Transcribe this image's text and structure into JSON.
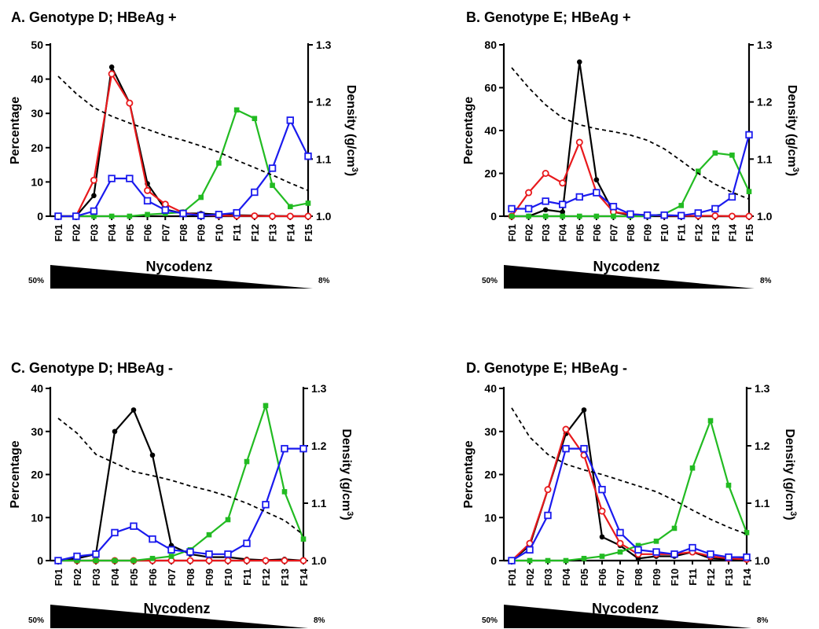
{
  "figure": {
    "x_axis_title": "Nycodenz",
    "y_left_title": "Percentage",
    "y_right_title": "Density (g/cm",
    "y_right_title_sup": "3",
    "y_right_title_end": ")",
    "gradient_start_label": "50%",
    "gradient_end_label": "8%",
    "colors": {
      "black_series": "#000000",
      "red_series": "#e8191c",
      "green_series": "#22bb22",
      "blue_series": "#1a1aee",
      "density_line": "#000000",
      "gradient_wedge": "#000000"
    }
  },
  "chart_data": [
    {
      "type": "line",
      "title": "A.   Genotype D; HBeAg +",
      "xlabel": "Nycodenz",
      "ylabel": "Percentage",
      "y2label": "Density (g/cm3)",
      "categories": [
        "F01",
        "F02",
        "F03",
        "F04",
        "F05",
        "F06",
        "F07",
        "F08",
        "F09",
        "F10",
        "F11",
        "F12",
        "F13",
        "F14",
        "F15"
      ],
      "ylim": [
        0,
        50
      ],
      "yticks": [
        0,
        10,
        20,
        30,
        40,
        50
      ],
      "y2lim": [
        1.0,
        1.3
      ],
      "y2ticks": [
        "1.0",
        "1.1",
        "1.2",
        "1.3"
      ],
      "grid": false,
      "legend": "none",
      "series": [
        {
          "color": "black",
          "marker": "filled-circle",
          "values": [
            0,
            0,
            6,
            43.5,
            33,
            9.5,
            2,
            0.8,
            0.8,
            0.5,
            0.3,
            0.2,
            0.1,
            0,
            0
          ]
        },
        {
          "color": "red",
          "marker": "open-circle",
          "values": [
            0,
            0,
            10.5,
            41.5,
            33,
            7.5,
            3.5,
            1,
            0.3,
            0.2,
            0.1,
            0.1,
            0,
            0,
            0
          ]
        },
        {
          "color": "green",
          "marker": "filled-square",
          "values": [
            0,
            0,
            0,
            0,
            0,
            0.5,
            0.8,
            1.2,
            5.5,
            15.5,
            31,
            28.5,
            9,
            2.8,
            3.8
          ]
        },
        {
          "color": "blue",
          "marker": "open-square",
          "values": [
            0,
            0,
            1.5,
            11,
            11,
            4.5,
            1.8,
            0.8,
            0.2,
            0.5,
            1,
            7,
            14,
            28,
            17.5
          ]
        },
        {
          "color": "black",
          "style": "dashed",
          "axis": "right",
          "values": [
            1.245,
            1.215,
            1.19,
            1.175,
            1.163,
            1.152,
            1.141,
            1.133,
            1.123,
            1.112,
            1.098,
            1.085,
            1.072,
            1.058,
            1.045
          ]
        }
      ],
      "gradient": {
        "start_label": "50%",
        "end_label": "8%"
      }
    },
    {
      "type": "line",
      "title": "B.   Genotype E; HBeAg +",
      "xlabel": "Nycodenz",
      "ylabel": "Percentage",
      "y2label": "Density (g/cm3)",
      "categories": [
        "F01",
        "F02",
        "F03",
        "F04",
        "F05",
        "F06",
        "F07",
        "F08",
        "F09",
        "F10",
        "F11",
        "F12",
        "F13",
        "F14",
        "F15"
      ],
      "ylim": [
        0,
        80
      ],
      "yticks": [
        0,
        20,
        40,
        60,
        80
      ],
      "y2lim": [
        1.0,
        1.3
      ],
      "y2ticks": [
        "1.0",
        "1.1",
        "1.2",
        "1.3"
      ],
      "grid": false,
      "legend": "none",
      "series": [
        {
          "color": "black",
          "marker": "filled-circle",
          "values": [
            0,
            0,
            3,
            2,
            72,
            17,
            2,
            0.5,
            0.5,
            0,
            0,
            0,
            0,
            0,
            0
          ]
        },
        {
          "color": "red",
          "marker": "open-circle",
          "values": [
            0,
            11,
            20,
            15.5,
            34.5,
            11,
            2,
            1,
            0.5,
            0.3,
            0.2,
            0.2,
            0.2,
            0,
            0
          ]
        },
        {
          "color": "green",
          "marker": "filled-square",
          "values": [
            0,
            0,
            0,
            0,
            0,
            0,
            0,
            0,
            0,
            1,
            5,
            21,
            29.5,
            28.5,
            11.5
          ]
        },
        {
          "color": "blue",
          "marker": "open-square",
          "values": [
            3.5,
            3.5,
            7,
            5.5,
            9,
            11,
            4.5,
            1,
            0.5,
            0.5,
            0.3,
            1.5,
            3.5,
            9,
            38
          ]
        },
        {
          "color": "black",
          "style": "dashed",
          "axis": "right",
          "values": [
            1.26,
            1.225,
            1.195,
            1.172,
            1.16,
            1.153,
            1.148,
            1.142,
            1.133,
            1.118,
            1.097,
            1.075,
            1.056,
            1.042,
            1.03
          ]
        }
      ],
      "gradient": {
        "start_label": "50%",
        "end_label": "8%"
      }
    },
    {
      "type": "line",
      "title": "C.   Genotype D; HBeAg -",
      "xlabel": "Nycodenz",
      "ylabel": "Percentage",
      "y2label": "Density (g/cm3)",
      "categories": [
        "F01",
        "F02",
        "F03",
        "F04",
        "F05",
        "F06",
        "F07",
        "F08",
        "F09",
        "F10",
        "F11",
        "F12",
        "F13",
        "F14"
      ],
      "ylim": [
        0,
        40
      ],
      "yticks": [
        0,
        10,
        20,
        30,
        40
      ],
      "y2lim": [
        1.0,
        1.3
      ],
      "y2ticks": [
        "1.0",
        "1.1",
        "1.2",
        "1.3"
      ],
      "grid": false,
      "legend": "none",
      "series": [
        {
          "color": "black",
          "marker": "filled-circle",
          "values": [
            0,
            0.5,
            1.5,
            30,
            35,
            24.5,
            3.5,
            1.5,
            0.8,
            0.8,
            0.3,
            0.1,
            0.3,
            0
          ]
        },
        {
          "color": "red",
          "marker": "open-circle",
          "values": [
            0,
            0,
            0,
            0,
            0,
            0,
            0,
            0,
            0,
            0,
            0,
            0,
            0,
            0
          ]
        },
        {
          "color": "green",
          "marker": "filled-square",
          "values": [
            0,
            0,
            0,
            0,
            0,
            0.5,
            1,
            2.5,
            6,
            9.5,
            23,
            36,
            16,
            5
          ]
        },
        {
          "color": "blue",
          "marker": "open-square",
          "values": [
            0,
            1,
            1.5,
            6.5,
            8,
            5,
            2.5,
            2,
            1.5,
            1.5,
            4,
            13,
            26,
            26
          ]
        },
        {
          "color": "black",
          "style": "dashed",
          "axis": "right",
          "values": [
            1.248,
            1.222,
            1.185,
            1.17,
            1.155,
            1.148,
            1.14,
            1.13,
            1.122,
            1.112,
            1.1,
            1.085,
            1.07,
            1.045
          ]
        }
      ],
      "gradient": {
        "start_label": "50%",
        "end_label": "8%"
      }
    },
    {
      "type": "line",
      "title": "D.   Genotype E; HBeAg -",
      "xlabel": "Nycodenz",
      "ylabel": "Percentage",
      "y2label": "Density (g/cm3)",
      "categories": [
        "F01",
        "F02",
        "F03",
        "F04",
        "F05",
        "F06",
        "F07",
        "F08",
        "F09",
        "F10",
        "F11",
        "F12",
        "F13",
        "F14"
      ],
      "ylim": [
        0,
        40
      ],
      "yticks": [
        0,
        10,
        20,
        30,
        40
      ],
      "y2lim": [
        1.0,
        1.3
      ],
      "y2ticks": [
        "1.0",
        "1.1",
        "1.2",
        "1.3"
      ],
      "grid": false,
      "legend": "none",
      "series": [
        {
          "color": "black",
          "marker": "filled-circle",
          "values": [
            0,
            3.5,
            16.5,
            29.5,
            35,
            5.5,
            3.5,
            0.5,
            1,
            1,
            2,
            0.5,
            0.3,
            0.5
          ]
        },
        {
          "color": "red",
          "marker": "open-circle",
          "values": [
            0,
            4,
            16.5,
            30.5,
            24.5,
            11.5,
            4,
            1.5,
            1.5,
            1.5,
            2,
            1,
            0.5,
            0.3
          ]
        },
        {
          "color": "green",
          "marker": "filled-square",
          "values": [
            0,
            0,
            0,
            0,
            0.5,
            1,
            2,
            3.5,
            4.5,
            7.5,
            21.5,
            32.5,
            17.5,
            6.5
          ]
        },
        {
          "color": "blue",
          "marker": "open-square",
          "values": [
            0,
            2.5,
            10.5,
            26,
            26,
            16.5,
            6.5,
            2.5,
            2,
            1.5,
            3,
            1.5,
            0.8,
            0.8
          ]
        },
        {
          "color": "black",
          "style": "dashed",
          "axis": "right",
          "values": [
            1.266,
            1.215,
            1.185,
            1.168,
            1.158,
            1.15,
            1.14,
            1.13,
            1.12,
            1.105,
            1.088,
            1.072,
            1.058,
            1.046
          ]
        }
      ],
      "gradient": {
        "start_label": "50%",
        "end_label": "8%"
      }
    }
  ]
}
